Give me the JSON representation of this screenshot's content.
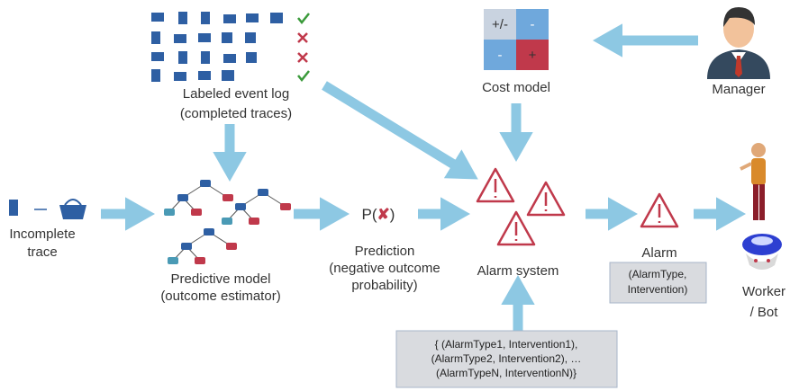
{
  "event_log": {
    "label": [
      "Labeled event log",
      "(completed traces)"
    ]
  },
  "cost_model": {
    "cells": [
      "+/-",
      "-",
      "-",
      "+"
    ],
    "label": "Cost model"
  },
  "manager": {
    "label": "Manager"
  },
  "incomplete_trace": {
    "label": [
      "Incomplete",
      "trace"
    ]
  },
  "predictive_model": {
    "label": [
      "Predictive model",
      "(outcome estimator)"
    ]
  },
  "prediction": {
    "symbol": [
      "P(",
      "✘",
      ")"
    ],
    "label": [
      "Prediction",
      "(negative outcome",
      "probability)"
    ]
  },
  "alarm_system": {
    "label": "Alarm system",
    "options": [
      "{ (AlarmType1, Intervention1),",
      "(AlarmType2, Intervention2), …",
      "(AlarmTypeN, InterventionN)}"
    ]
  },
  "alarm": {
    "label": "Alarm",
    "detail": [
      "(AlarmType,",
      "Intervention)"
    ]
  },
  "worker": {
    "label": [
      "Worker",
      "/ Bot"
    ]
  }
}
